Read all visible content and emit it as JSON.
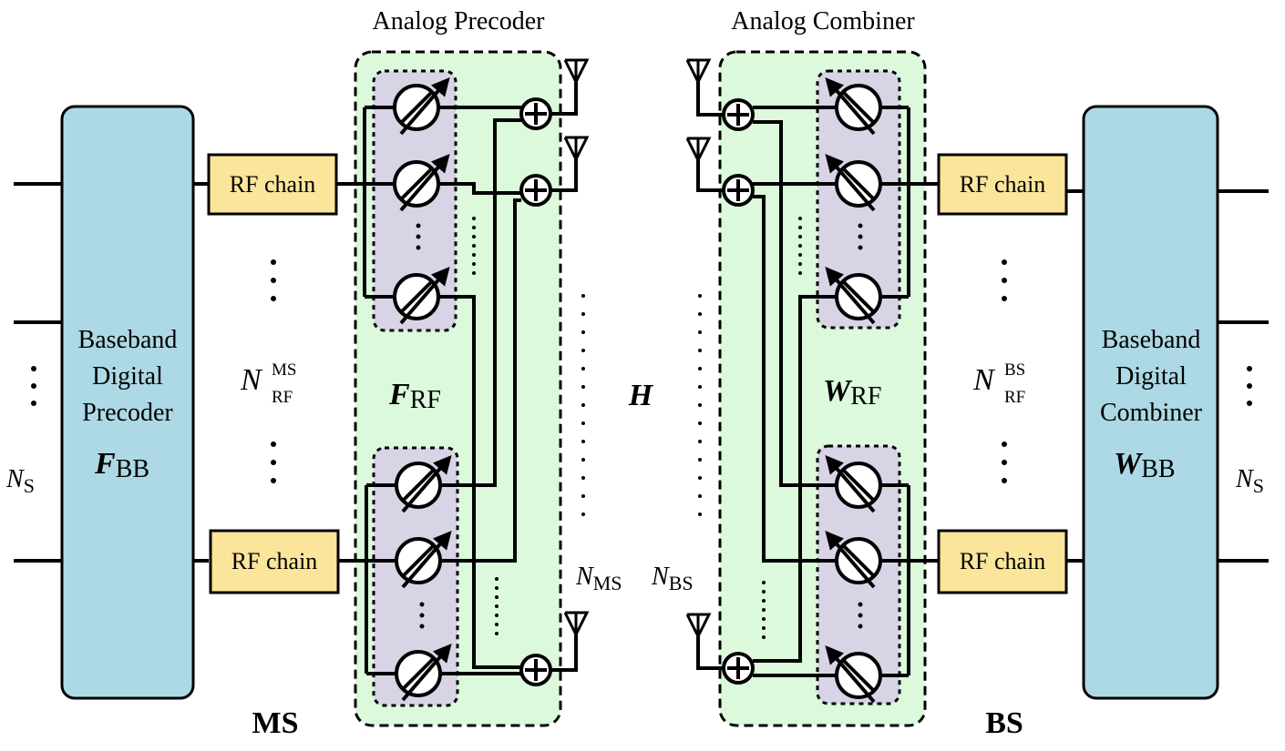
{
  "ms": {
    "block_label_1": "Baseband",
    "block_label_2": "Digital",
    "block_label_3": "Precoder",
    "matrix": "F",
    "matrix_sub": "BB",
    "rf_chain_top": "RF chain",
    "rf_chain_bottom": "RF chain",
    "nrf_base": "N",
    "nrf_sup": "MS",
    "nrf_sub": "RF",
    "ns_base": "N",
    "ns_sub": "S",
    "title": "MS"
  },
  "precoder": {
    "title": "Analog Precoder",
    "matrix": "F",
    "matrix_sub": "RF",
    "antennas_base": "N",
    "antennas_sub": "MS"
  },
  "channel": {
    "label": "H"
  },
  "combiner": {
    "title": "Analog Combiner",
    "matrix": "W",
    "matrix_sub": "RF",
    "antennas_base": "N",
    "antennas_sub": "BS"
  },
  "bs": {
    "block_label_1": "Baseband",
    "block_label_2": "Digital",
    "block_label_3": "Combiner",
    "matrix": "W",
    "matrix_sub": "BB",
    "rf_chain_top": "RF chain",
    "rf_chain_bottom": "RF chain",
    "nrf_base": "N",
    "nrf_sup": "BS",
    "nrf_sub": "RF",
    "ns_base": "N",
    "ns_sub": "S",
    "title": "BS"
  },
  "colors": {
    "baseband_block": "#add8e6",
    "rf_chain": "#fbe59b",
    "analog_region": "#dcf9dc",
    "phase_group": "#d8d4e6"
  }
}
